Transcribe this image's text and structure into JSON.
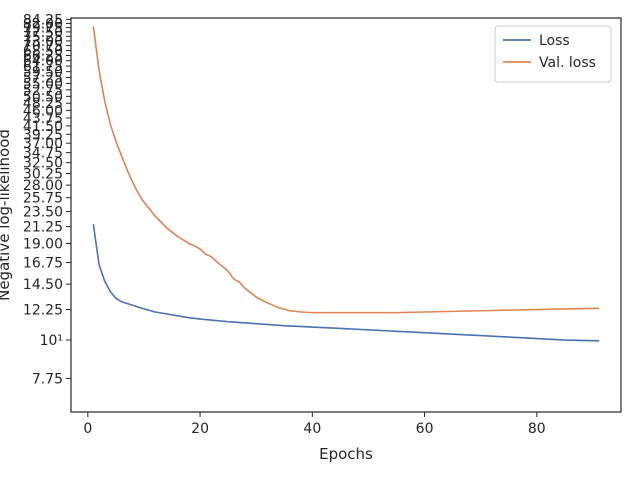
{
  "chart_data": {
    "type": "line",
    "xlabel": "Epochs",
    "ylabel": "Negative log-likelihood",
    "xlim": [
      -3,
      95
    ],
    "ylim": [
      6.2,
      85
    ],
    "yscale": "log",
    "grid": false,
    "legend_position": "top-right",
    "x_ticks": [
      0,
      20,
      40,
      60,
      80
    ],
    "x_tick_labels": [
      "0",
      "20",
      "40",
      "60",
      "80"
    ],
    "y_ticks": [
      7.75,
      10,
      12.25,
      14.5,
      16.75,
      19.0,
      21.25,
      23.5,
      25.75,
      28.0,
      30.25,
      32.5,
      34.75,
      37.0,
      39.25,
      41.5,
      43.75,
      46.0,
      48.25,
      50.5,
      52.75,
      55.0,
      57.25,
      59.5,
      61.75,
      64.0,
      66.25,
      68.5,
      70.75,
      73.0,
      75.25,
      77.5,
      79.75,
      82.0,
      84.25
    ],
    "y_tick_labels": [
      "7.75",
      "10¹",
      "12.25",
      "14.50",
      "16.75",
      "19.00",
      "21.25",
      "23.50",
      "25.75",
      "28.00",
      "30.25",
      "32.50",
      "34.75",
      "37.00",
      "39.25",
      "41.50",
      "43.75",
      "46.00",
      "48.25",
      "50.50",
      "52.75",
      "55.00",
      "57.25",
      "59.50",
      "61.75",
      "64.00",
      "66.25",
      "68.50",
      "70.75",
      "73.00",
      "75.25",
      "77.50",
      "79.75",
      "82.00",
      "84.25"
    ],
    "series": [
      {
        "name": "Loss",
        "color": "#4c72b0",
        "x": [
          1,
          2,
          3,
          4,
          5,
          6,
          7,
          8,
          9,
          10,
          12,
          14,
          16,
          18,
          20,
          25,
          30,
          35,
          40,
          45,
          50,
          55,
          60,
          65,
          70,
          75,
          80,
          85,
          91
        ],
        "y": [
          21.5,
          16.5,
          14.8,
          13.8,
          13.2,
          12.9,
          12.75,
          12.6,
          12.45,
          12.3,
          12.05,
          11.9,
          11.75,
          11.6,
          11.5,
          11.3,
          11.15,
          11.0,
          10.9,
          10.8,
          10.7,
          10.6,
          10.5,
          10.4,
          10.3,
          10.2,
          10.1,
          10.0,
          9.95
        ]
      },
      {
        "name": "Val. loss",
        "color": "#dd8452",
        "x": [
          1,
          2,
          3,
          4,
          5,
          6,
          7,
          8,
          9,
          10,
          12,
          14,
          16,
          18,
          19,
          20,
          21,
          22,
          23,
          24,
          25,
          26,
          27,
          28,
          29,
          30,
          32,
          34,
          36,
          38,
          40,
          45,
          50,
          55,
          60,
          65,
          70,
          75,
          80,
          85,
          91
        ],
        "y": [
          80,
          60,
          49,
          42,
          37.5,
          34,
          31,
          28.5,
          26.5,
          25,
          22.8,
          21.1,
          19.9,
          19.0,
          18.7,
          18.3,
          17.7,
          17.4,
          16.8,
          16.3,
          15.8,
          15.0,
          14.7,
          14.1,
          13.7,
          13.3,
          12.8,
          12.4,
          12.15,
          12.05,
          12.0,
          12.0,
          12.0,
          12.0,
          12.05,
          12.1,
          12.15,
          12.2,
          12.25,
          12.3,
          12.35
        ]
      }
    ]
  }
}
